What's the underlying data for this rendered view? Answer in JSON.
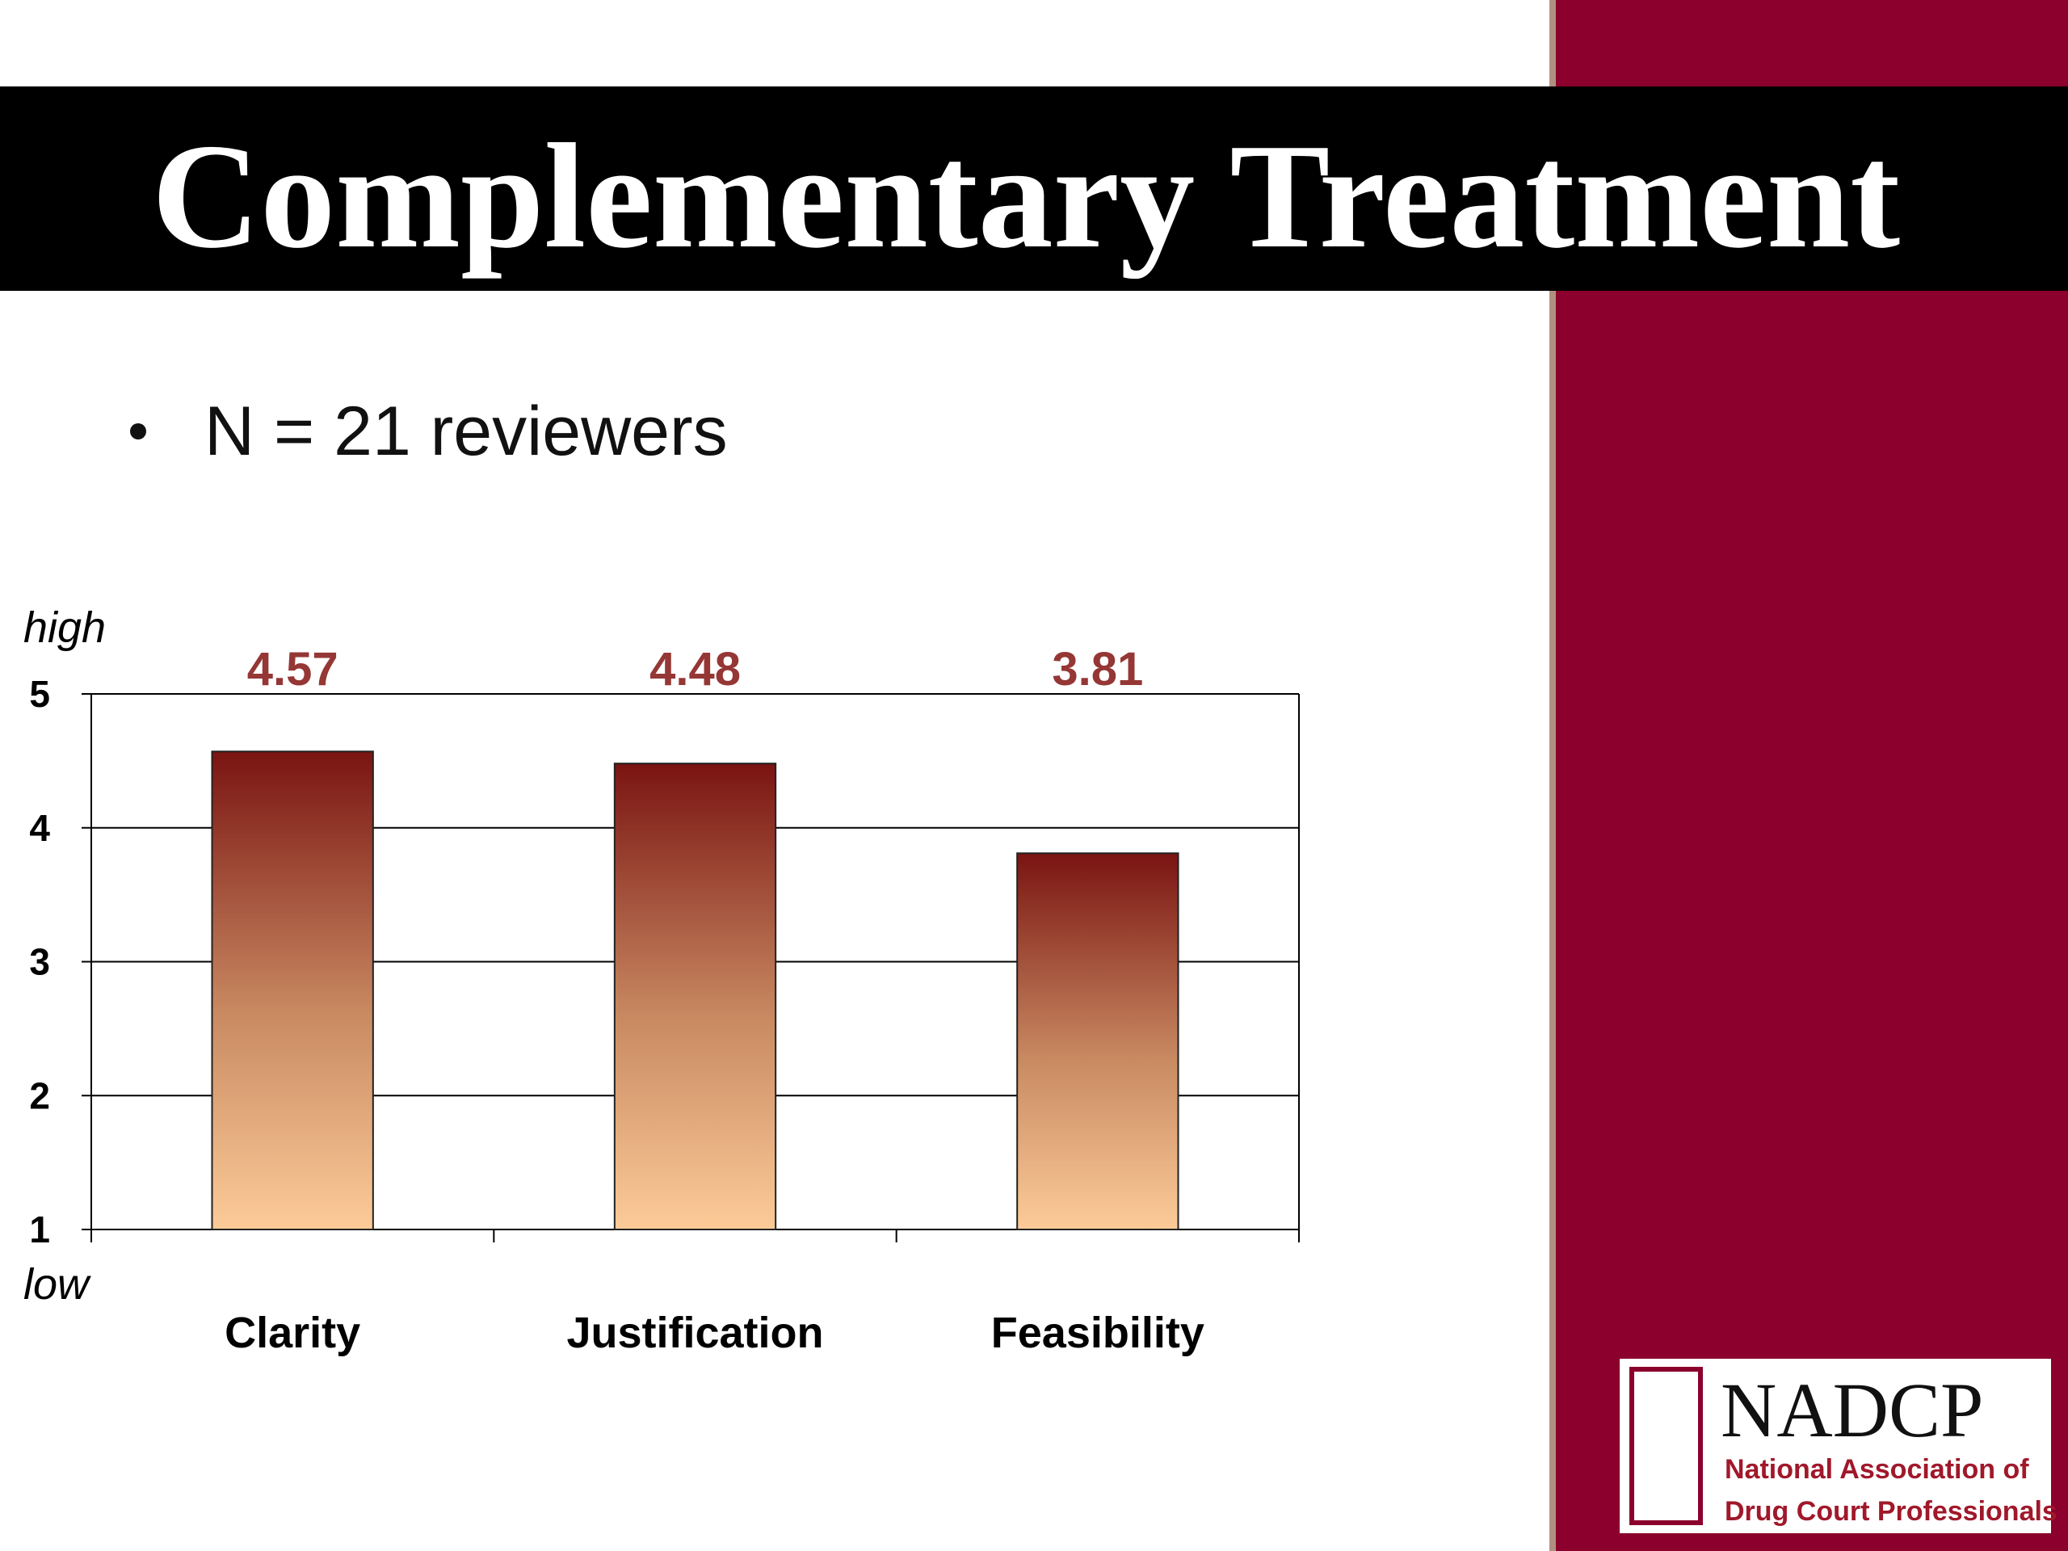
{
  "slide": {
    "title": "Complementary Treatment",
    "bullet": "N = 21 reviewers"
  },
  "logo": {
    "name": "NADCP",
    "lines": [
      "National Association of",
      "Drug Court Professionals"
    ]
  },
  "chart_data": {
    "type": "bar",
    "categories": [
      "Clarity",
      "Justification",
      "Feasibility"
    ],
    "values": [
      4.57,
      4.48,
      3.81
    ],
    "ylim": [
      1,
      5
    ],
    "yticks": [
      1,
      2,
      3,
      4,
      5
    ],
    "grid": true,
    "annotations": [
      "high",
      "low"
    ],
    "color": {
      "top": "#7a1412",
      "bottom": "#fccb98"
    },
    "value_label_color": "#953735"
  }
}
